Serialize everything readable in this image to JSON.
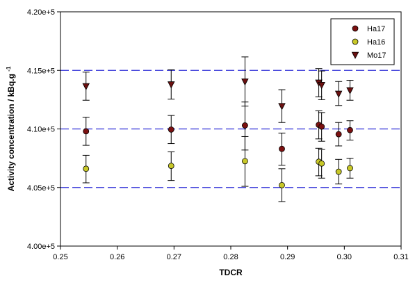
{
  "chart_data": {
    "type": "scatter",
    "title": "",
    "xlabel": "TDCR",
    "ylabel": "Activity concentration / kBq.g",
    "ylabel_superscript": "-1",
    "xlim": [
      0.25,
      0.31
    ],
    "ylim": [
      400000,
      420000
    ],
    "x_ticks": [
      0.25,
      0.26,
      0.27,
      0.28,
      0.29,
      0.3,
      0.31
    ],
    "x_tick_labels": [
      "0.25",
      "0.26",
      "0.27",
      "0.28",
      "0.29",
      "0.30",
      "0.31"
    ],
    "y_ticks": [
      400000,
      405000,
      410000,
      415000,
      420000
    ],
    "y_tick_labels": [
      "4.00e+5",
      "4.05e+5",
      "4.10e+5",
      "4.15e+5",
      "4.20e+5"
    ],
    "grid": false,
    "reference_lines": {
      "values": [
        405000,
        410000,
        415000
      ],
      "color": "#2b2bd6",
      "style": "dashed"
    },
    "legend": {
      "position": "top-right"
    },
    "series": [
      {
        "name": "Ha17",
        "marker": "circle",
        "color": "#7b1010",
        "points": [
          {
            "x": 0.2545,
            "y": 409800,
            "err_low": 408600,
            "err_high": 411000
          },
          {
            "x": 0.2695,
            "y": 409950,
            "err_low": 408750,
            "err_high": 411150
          },
          {
            "x": 0.2825,
            "y": 410300,
            "err_low": 408200,
            "err_high": 412300
          },
          {
            "x": 0.289,
            "y": 408300,
            "err_low": 406900,
            "err_high": 409650
          },
          {
            "x": 0.2955,
            "y": 410350,
            "err_low": 409150,
            "err_high": 411550
          },
          {
            "x": 0.296,
            "y": 410200,
            "err_low": 408950,
            "err_high": 411400
          },
          {
            "x": 0.299,
            "y": 409550,
            "err_low": 408550,
            "err_high": 410550
          },
          {
            "x": 0.301,
            "y": 409900,
            "err_low": 409050,
            "err_high": 410700
          }
        ]
      },
      {
        "name": "Ha16",
        "marker": "circle",
        "color": "#c8c828",
        "points": [
          {
            "x": 0.2545,
            "y": 406600,
            "err_low": 405400,
            "err_high": 407750
          },
          {
            "x": 0.2695,
            "y": 406850,
            "err_low": 405600,
            "err_high": 408050
          },
          {
            "x": 0.2825,
            "y": 407250,
            "err_low": 405100,
            "err_high": 409350
          },
          {
            "x": 0.289,
            "y": 405200,
            "err_low": 403800,
            "err_high": 406600
          },
          {
            "x": 0.2955,
            "y": 407200,
            "err_low": 406000,
            "err_high": 408350
          },
          {
            "x": 0.296,
            "y": 407050,
            "err_low": 405800,
            "err_high": 408250
          },
          {
            "x": 0.299,
            "y": 406350,
            "err_low": 405300,
            "err_high": 407400
          },
          {
            "x": 0.301,
            "y": 406650,
            "err_low": 405800,
            "err_high": 407500
          }
        ]
      },
      {
        "name": "Mo17",
        "marker": "triangle-down",
        "color": "#6b1010",
        "points": [
          {
            "x": 0.2545,
            "y": 413650,
            "err_low": 412450,
            "err_high": 414850
          },
          {
            "x": 0.2695,
            "y": 413800,
            "err_low": 412550,
            "err_high": 415050
          },
          {
            "x": 0.2825,
            "y": 414050,
            "err_low": 411950,
            "err_high": 416150
          },
          {
            "x": 0.289,
            "y": 411950,
            "err_low": 410550,
            "err_high": 413350
          },
          {
            "x": 0.2955,
            "y": 413950,
            "err_low": 412750,
            "err_high": 415150
          },
          {
            "x": 0.296,
            "y": 413750,
            "err_low": 412500,
            "err_high": 414950
          },
          {
            "x": 0.299,
            "y": 413000,
            "err_low": 412000,
            "err_high": 414050
          },
          {
            "x": 0.301,
            "y": 413300,
            "err_low": 412450,
            "err_high": 414150
          }
        ]
      }
    ]
  }
}
